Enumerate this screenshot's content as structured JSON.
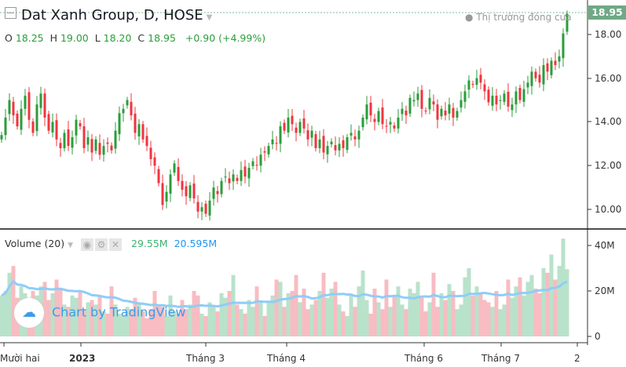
{
  "header": {
    "title": "Dat Xanh Group, D, HOSE",
    "o_label": "O",
    "o": "18.25",
    "h_label": "H",
    "h": "19.00",
    "l_label": "L",
    "l": "18.20",
    "c_label": "C",
    "c": "18.95",
    "change": "+0.90 (+4.99%)",
    "market_status": "Thị trường đóng cửa",
    "last_price": "18.95"
  },
  "price_axis": [
    "18.00",
    "16.00",
    "14.00",
    "12.00",
    "10.00"
  ],
  "volume_pane": {
    "label": "Volume (20)",
    "value": "29.55M",
    "ma_value": "20.595M",
    "axis": [
      "40M",
      "20M",
      "0"
    ]
  },
  "time_axis": [
    "Mười hai",
    "2023",
    "Tháng 3",
    "Tháng 4",
    "Tháng 6",
    "Tháng 7",
    "2"
  ],
  "watermark": "Chart by TradingView",
  "colors": {
    "up": "#2a9d3a",
    "down": "#f0353f",
    "vol_up": "#b9e2cb",
    "vol_down": "#f8bcc2",
    "ma": "#8fcdf7"
  },
  "chart_data": {
    "type": "candlestick",
    "ylim": [
      9.5,
      19.2
    ],
    "closes": [
      13.4,
      14.2,
      15.0,
      14.3,
      13.8,
      14.6,
      15.2,
      14.1,
      13.5,
      14.8,
      15.3,
      14.2,
      13.6,
      14.0,
      13.2,
      12.8,
      13.5,
      12.9,
      13.3,
      14.1,
      13.8,
      12.8,
      13.3,
      12.6,
      13.2,
      12.5,
      12.9,
      13.0,
      12.7,
      13.6,
      14.4,
      14.6,
      15.0,
      14.3,
      13.5,
      13.9,
      13.2,
      12.9,
      12.3,
      12.0,
      11.2,
      10.2,
      10.8,
      11.6,
      12.1,
      11.3,
      10.9,
      10.6,
      11.1,
      10.5,
      9.9,
      10.1,
      9.8,
      10.4,
      11.0,
      10.7,
      11.3,
      11.5,
      11.2,
      11.6,
      11.3,
      11.8,
      11.5,
      11.9,
      12.2,
      12.0,
      12.5,
      12.6,
      12.9,
      13.2,
      13.0,
      13.8,
      13.6,
      14.2,
      13.9,
      13.5,
      14.0,
      13.7,
      13.2,
      13.6,
      12.8,
      13.2,
      12.6,
      12.9,
      13.1,
      12.7,
      13.0,
      12.8,
      13.3,
      13.5,
      13.2,
      13.6,
      14.2,
      14.8,
      14.3,
      14.0,
      14.5,
      13.9,
      13.8,
      14.0,
      13.7,
      14.2,
      14.6,
      14.3,
      15.1,
      15.0,
      15.3,
      14.6,
      14.5,
      15.1,
      14.8,
      14.1,
      14.6,
      14.3,
      14.8,
      14.2,
      14.5,
      15.0,
      15.4,
      15.9,
      15.7,
      16.0,
      15.8,
      15.4,
      14.9,
      15.2,
      14.8,
      15.0,
      15.3,
      14.7,
      14.8,
      15.4,
      15.0,
      15.5,
      15.8,
      16.3,
      16.0,
      15.8,
      16.6,
      16.3,
      16.8,
      16.6,
      17.0,
      18.05,
      18.95
    ],
    "volumes_m": [
      18,
      20,
      28,
      31,
      17,
      22,
      19,
      15,
      20,
      18,
      22,
      24,
      16,
      19,
      25,
      21,
      14,
      13,
      18,
      17,
      20,
      12,
      15,
      16,
      14,
      18,
      11,
      10,
      22,
      14,
      10,
      9,
      13,
      12,
      17,
      15,
      11,
      8,
      12,
      20,
      14,
      13,
      9,
      18,
      11,
      10,
      16,
      12,
      14,
      20,
      18,
      10,
      9,
      15,
      13,
      11,
      19,
      17,
      20,
      27,
      14,
      12,
      10,
      16,
      13,
      22,
      15,
      9,
      15,
      18,
      25,
      24,
      13,
      19,
      20,
      27,
      15,
      21,
      12,
      14,
      16,
      20,
      28,
      17,
      21,
      24,
      14,
      11,
      9,
      18,
      13,
      22,
      29,
      16,
      10,
      21,
      15,
      12,
      25,
      13,
      18,
      22,
      14,
      12,
      21,
      19,
      24,
      17,
      11,
      15,
      28,
      13,
      19,
      16,
      23,
      20,
      12,
      14,
      26,
      30,
      18,
      22,
      19,
      16,
      15,
      13,
      20,
      12,
      14,
      25,
      17,
      22,
      26,
      18,
      24,
      27,
      21,
      19,
      30,
      28,
      36,
      25,
      31,
      43,
      29.55
    ]
  }
}
